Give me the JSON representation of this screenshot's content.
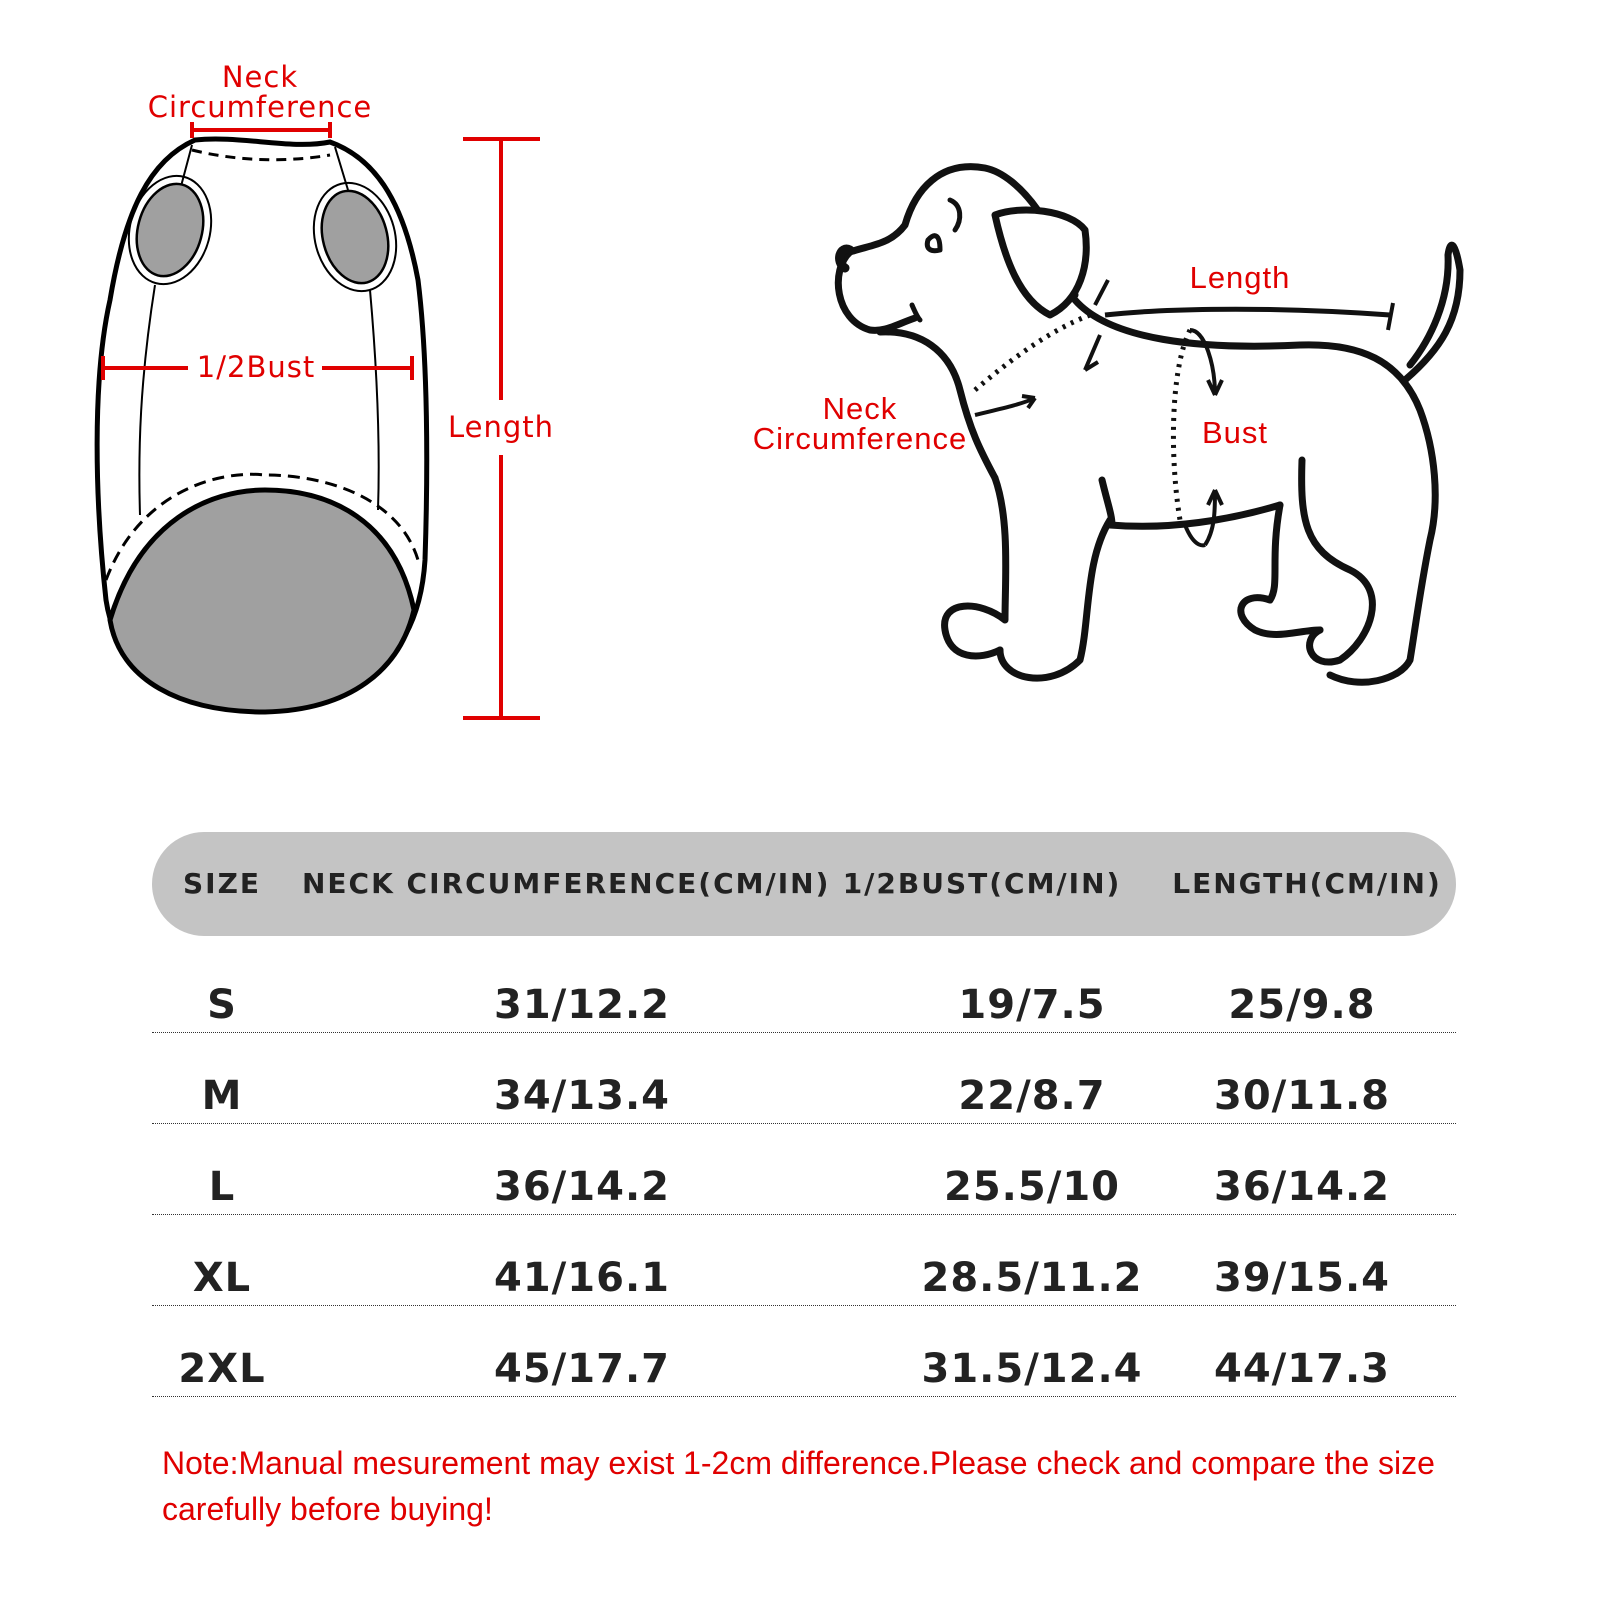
{
  "vest_diagram": {
    "neck_label_line1": "Neck",
    "neck_label_line2": "Circumference",
    "bust_label": "1/2Bust",
    "length_label": "Length"
  },
  "dog_diagram": {
    "length_label": "Length",
    "neck_label_line1": "Neck",
    "neck_label_line2": "Circumference",
    "bust_label": "Bust"
  },
  "table": {
    "headers": [
      "SIZE",
      "NECK CIRCUMFERENCE(CM/IN)",
      "1/2BUST(CM/IN)",
      "LENGTH(CM/IN)"
    ],
    "rows": [
      [
        "S",
        "31/12.2",
        "19/7.5",
        "25/9.8"
      ],
      [
        "M",
        "34/13.4",
        "22/8.7",
        "30/11.8"
      ],
      [
        "L",
        "36/14.2",
        "25.5/10",
        "36/14.2"
      ],
      [
        "XL",
        "41/16.1",
        "28.5/11.2",
        "39/15.4"
      ],
      [
        "2XL",
        "45/17.7",
        "31.5/12.4",
        "44/17.3"
      ]
    ]
  },
  "note": "Note:Manual mesurement may exist 1-2cm difference.Please check and compare the size carefully before buying!",
  "colors": {
    "accent": "#e00000",
    "header_bg": "#c4c4c4",
    "fill_gray": "#a0a0a0"
  }
}
